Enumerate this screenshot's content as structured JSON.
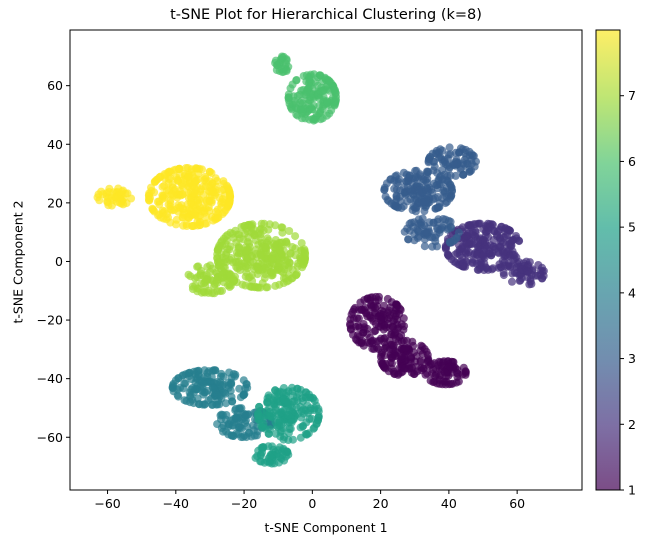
{
  "chart_data": {
    "type": "scatter",
    "title": "t-SNE Plot for Hierarchical Clustering (k=8)",
    "xlabel": "t-SNE Component 1",
    "ylabel": "t-SNE Component 2",
    "xlim": [
      -71,
      79
    ],
    "ylim": [
      -78,
      79
    ],
    "xticks": [
      -60,
      -40,
      -20,
      0,
      20,
      40,
      60
    ],
    "yticks": [
      -60,
      -40,
      -20,
      0,
      20,
      40,
      60
    ],
    "colorbar": {
      "min": 1,
      "max": 8,
      "ticks": [
        1,
        2,
        3,
        4,
        5,
        6,
        7
      ],
      "colormap": "viridis"
    },
    "alpha": 0.7,
    "clusters": [
      {
        "label": 1,
        "color": "#440154",
        "blobs": [
          {
            "cx": 19,
            "cy": -21,
            "rx": 8,
            "ry": 9,
            "n": 150
          },
          {
            "cx": 27,
            "cy": -33,
            "rx": 7,
            "ry": 6,
            "n": 110
          },
          {
            "cx": 39,
            "cy": -38,
            "rx": 6,
            "ry": 4,
            "n": 70
          }
        ]
      },
      {
        "label": 2,
        "color": "#46327e",
        "blobs": [
          {
            "cx": 50,
            "cy": 5,
            "rx": 11,
            "ry": 8,
            "n": 230
          },
          {
            "cx": 62,
            "cy": -4,
            "rx": 6,
            "ry": 4,
            "n": 60
          }
        ]
      },
      {
        "label": 3,
        "color": "#365c8d",
        "blobs": [
          {
            "cx": 31,
            "cy": 24,
            "rx": 10,
            "ry": 7,
            "n": 170
          },
          {
            "cx": 41,
            "cy": 34,
            "rx": 7,
            "ry": 5,
            "n": 80
          },
          {
            "cx": 35,
            "cy": 10,
            "rx": 8,
            "ry": 5,
            "n": 70
          }
        ]
      },
      {
        "label": 4,
        "color": "#277f8e",
        "blobs": [
          {
            "cx": -30,
            "cy": -43,
            "rx": 11,
            "ry": 6,
            "n": 150
          },
          {
            "cx": -20,
            "cy": -55,
            "rx": 8,
            "ry": 5,
            "n": 90
          }
        ]
      },
      {
        "label": 5,
        "color": "#1fa187",
        "blobs": [
          {
            "cx": -7,
            "cy": -52,
            "rx": 9,
            "ry": 9,
            "n": 180
          },
          {
            "cx": -12,
            "cy": -66,
            "rx": 5,
            "ry": 3,
            "n": 50
          }
        ]
      },
      {
        "label": 6,
        "color": "#4ac16d",
        "blobs": [
          {
            "cx": 0,
            "cy": 56,
            "rx": 7,
            "ry": 8,
            "n": 150
          },
          {
            "cx": -9,
            "cy": 67,
            "rx": 2,
            "ry": 3,
            "n": 25
          }
        ]
      },
      {
        "label": 7,
        "color": "#a0da39",
        "blobs": [
          {
            "cx": -15,
            "cy": 2,
            "rx": 13,
            "ry": 11,
            "n": 300
          },
          {
            "cx": -30,
            "cy": -6,
            "rx": 7,
            "ry": 5,
            "n": 70
          }
        ]
      },
      {
        "label": 8,
        "color": "#fde725",
        "blobs": [
          {
            "cx": -36,
            "cy": 22,
            "rx": 12,
            "ry": 10,
            "n": 280
          },
          {
            "cx": -58,
            "cy": 22,
            "rx": 5,
            "ry": 3,
            "n": 40
          }
        ]
      }
    ]
  }
}
